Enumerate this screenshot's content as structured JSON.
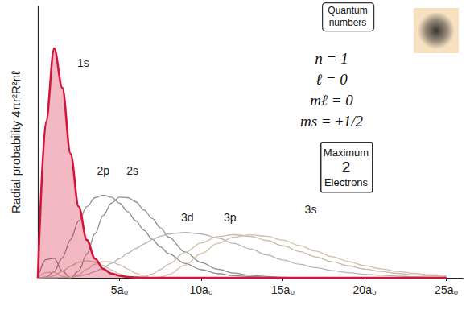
{
  "chart_data": {
    "type": "line",
    "y_label": "Radial probability 4πr²R²nℓ",
    "x": [
      0,
      0.5,
      1,
      1.5,
      2,
      2.5,
      3,
      3.5,
      4,
      4.5,
      5,
      5.5,
      6,
      6.5,
      7,
      7.5,
      8,
      9,
      10,
      11,
      12,
      13,
      14,
      15,
      16,
      17,
      18,
      19,
      20,
      21,
      22,
      23,
      24,
      25
    ],
    "xlim": [
      0,
      26
    ],
    "ylim": [
      0,
      0.64
    ],
    "xticks": [
      {
        "value": 5,
        "label": "5a₀"
      },
      {
        "value": 10,
        "label": "10a₀"
      },
      {
        "value": 15,
        "label": "15a₀"
      },
      {
        "value": 20,
        "label": "20a₀"
      },
      {
        "value": 25,
        "label": "25a₀"
      }
    ],
    "tick_labels": "x",
    "grid": false,
    "series": [
      {
        "name": "1s",
        "type": "area",
        "color": "#d4143a",
        "values": [
          0,
          0.368,
          0.541,
          0.448,
          0.293,
          0.168,
          0.089,
          0.045,
          0.021,
          0.01,
          0.005,
          0.002,
          0.001,
          0,
          0,
          0,
          0,
          0,
          0,
          0,
          0,
          0,
          0,
          0,
          0,
          0,
          0,
          0,
          0,
          0,
          0,
          0,
          0,
          0
        ]
      },
      {
        "name": "2p",
        "type": "line",
        "color": "#8c8c8c",
        "values": [
          0,
          0.0016,
          0.015,
          0.047,
          0.09,
          0.134,
          0.168,
          0.189,
          0.195,
          0.19,
          0.176,
          0.156,
          0.134,
          0.112,
          0.091,
          0.073,
          0.057,
          0.034,
          0.019,
          0.01,
          0.005,
          0.003,
          0.001,
          0,
          0,
          0,
          0,
          0,
          0,
          0,
          0,
          0,
          0,
          0
        ]
      },
      {
        "name": "2s",
        "type": "line",
        "color": "#8c8c8c",
        "values": [
          0,
          0.043,
          0.046,
          0.016,
          0,
          0.016,
          0.056,
          0.104,
          0.147,
          0.176,
          0.19,
          0.189,
          0.179,
          0.16,
          0.14,
          0.118,
          0.096,
          0.061,
          0.036,
          0.02,
          0.011,
          0.006,
          0.003,
          0.001,
          0,
          0,
          0,
          0,
          0,
          0,
          0,
          0,
          0,
          0
        ]
      },
      {
        "name": "3d",
        "type": "line",
        "color": "#b4b4b4",
        "values": [
          0,
          0,
          0,
          0.0002,
          0.0014,
          0.004,
          0.008,
          0.0145,
          0.023,
          0.034,
          0.045,
          0.058,
          0.069,
          0.08,
          0.09,
          0.098,
          0.103,
          0.107,
          0.103,
          0.094,
          0.081,
          0.068,
          0.054,
          0.042,
          0.032,
          0.024,
          0.017,
          0.012,
          0.0084,
          0.0058,
          0.004,
          0.0026,
          0.0017,
          0.0011
        ]
      },
      {
        "name": "3p",
        "type": "line",
        "color": "#c8b9a6",
        "values": [
          0,
          0.00055,
          0.0052,
          0.0153,
          0.0274,
          0.0367,
          0.04,
          0.037,
          0.029,
          0.0187,
          0.0091,
          0.0024,
          0,
          0.0024,
          0.0092,
          0.0195,
          0.0321,
          0.0595,
          0.0825,
          0.0971,
          0.1016,
          0.0978,
          0.0883,
          0.0757,
          0.0621,
          0.0493,
          0.0377,
          0.0283,
          0.0206,
          0.0148,
          0.0104,
          0.0072,
          0.0049,
          0.0033
        ]
      },
      {
        "name": "3s",
        "type": "line",
        "color": "#d2bfa6",
        "values": [
          0,
          0.0125,
          0.0126,
          0.0034,
          0.0002,
          0.0073,
          0.02,
          0.0319,
          0.0381,
          0.0373,
          0.0306,
          0.0208,
          0.0108,
          0.0034,
          0.0001,
          0.0016,
          0.0076,
          0.0298,
          0.057,
          0.0809,
          0.0961,
          0.1013,
          0.0981,
          0.0889,
          0.0763,
          0.0629,
          0.0498,
          0.0384,
          0.0287,
          0.021,
          0.0151,
          0.0106,
          0.0073,
          0.005
        ]
      }
    ],
    "annotations": {
      "quantum_numbers": {
        "title": [
          "Quantum",
          "numbers"
        ],
        "lines": [
          "n = 1",
          "ℓ = 0",
          "mℓ = 0",
          "ms = ±1/2"
        ]
      },
      "capacity": [
        "Maximum",
        "2",
        "Electrons"
      ]
    }
  }
}
